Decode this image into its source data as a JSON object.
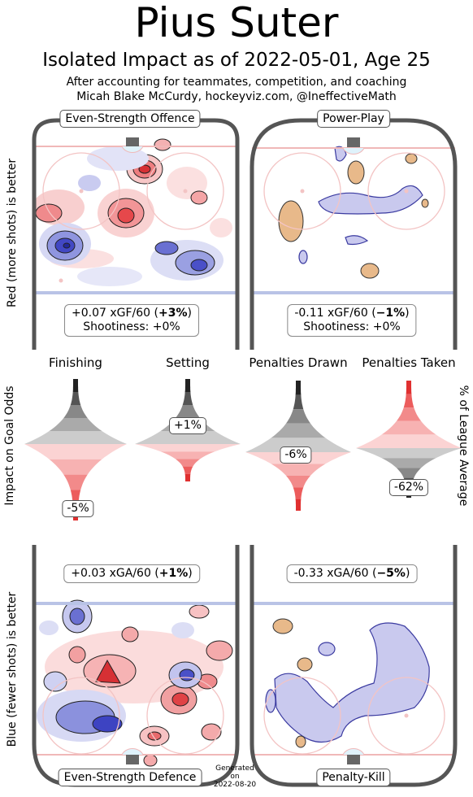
{
  "header": {
    "title": "Pius Suter",
    "subtitle": "Isolated Impact as of 2022-05-01, Age 25",
    "credit_line1": "After accounting for teammates, competition, and coaching",
    "credit_line2": "Micah Blake McCurdy, hockeyviz.com, @IneffectiveMath"
  },
  "axis_labels": {
    "top_left": "Red (more shots) is better",
    "bottom_left": "Blue (fewer shots) is better",
    "middle_left": "Impact on Goal Odds",
    "middle_right": "% of League Average"
  },
  "footer": {
    "generated_line1": "Generated",
    "generated_line2": "on",
    "generated_line3": "2022-08-20"
  },
  "colors": {
    "red": "#e8474a",
    "blue": "#3c44c8",
    "orange": "#e8b98a",
    "lavender": "#c6c6ec",
    "rink_line_red": "#f0b8b8",
    "rink_line_blue": "#b9c3e6"
  },
  "chart_data": [
    {
      "type": "heatmap",
      "panel": "Even-Strength Offence",
      "stat_value": "+0.07 xGF/60",
      "stat_percent": "+3%",
      "shootiness": "Shootiness: +0%"
    },
    {
      "type": "heatmap",
      "panel": "Power-Play",
      "stat_value": "-0.11 xGF/60",
      "stat_percent": "−1%",
      "shootiness": "Shootiness: +0%"
    },
    {
      "type": "heatmap",
      "panel": "Even-Strength Defence",
      "stat_value": "+0.03 xGA/60",
      "stat_percent": "+1%"
    },
    {
      "type": "heatmap",
      "panel": "Penalty-Kill",
      "stat_value": "-0.33 xGA/60",
      "stat_percent": "−5%"
    },
    {
      "type": "violin",
      "categories": [
        "Finishing",
        "Setting",
        "Penalties Drawn",
        "Penalties Taken"
      ],
      "values": [
        -5,
        1,
        -6,
        -62
      ],
      "value_labels": [
        "-5%",
        "+1%",
        "-6%",
        "-62%"
      ]
    }
  ]
}
